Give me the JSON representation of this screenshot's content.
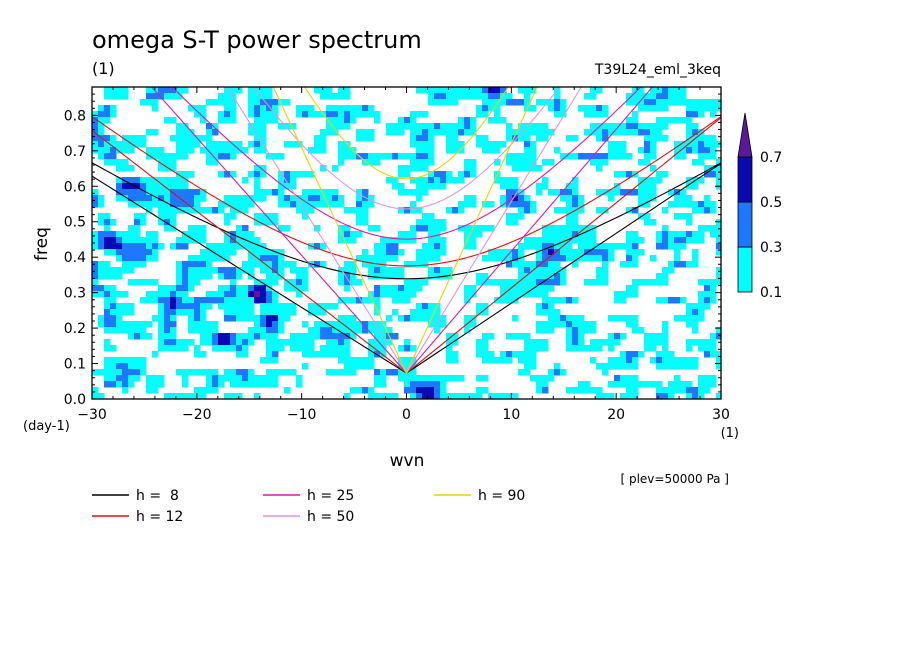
{
  "chart_data": {
    "type": "heatmap",
    "title": "omega S-T power spectrum",
    "subtitle": "(1)",
    "run_label": "T39L24_eml_3keq",
    "xlabel": "wvn",
    "ylabel": "freq",
    "x_units": "(1)",
    "y_units": "(day-1)",
    "annotation": "[ plev=50000 Pa ]",
    "xlim": [
      -30,
      30
    ],
    "ylim": [
      0,
      0.88
    ],
    "x_ticks": [
      -30,
      -20,
      -10,
      0,
      10,
      20,
      30
    ],
    "y_ticks": [
      0.0,
      0.1,
      0.2,
      0.3,
      0.4,
      0.5,
      0.6,
      0.7,
      0.8
    ],
    "y_tick_labels": [
      "0.0",
      "0.1",
      "0.2",
      "0.3",
      "0.4",
      "0.5",
      "0.6",
      "0.7",
      "0.8"
    ],
    "colorbar": {
      "levels": [
        0.1,
        0.3,
        0.5,
        0.7
      ],
      "labels": [
        "0.1",
        "0.3",
        "0.5",
        "0.7"
      ],
      "colors": [
        "#00ffff",
        "#1e78ff",
        "#0a0ab4",
        "#5a189a"
      ]
    },
    "field_samples": [
      {
        "wvn": -27,
        "freq": 0.05,
        "power": 0.15
      },
      {
        "wvn": -20,
        "freq": 0.4,
        "power": 0.2
      },
      {
        "wvn": -14,
        "freq": 0.3,
        "power": 0.55
      },
      {
        "wvn": -16,
        "freq": 0.36,
        "power": 0.35
      },
      {
        "wvn": -22,
        "freq": 0.27,
        "power": 0.35
      },
      {
        "wvn": -13,
        "freq": 0.22,
        "power": 0.35
      },
      {
        "wvn": -8,
        "freq": 0.2,
        "power": 0.35
      },
      {
        "wvn": -28,
        "freq": 0.44,
        "power": 0.35
      },
      {
        "wvn": -21,
        "freq": 0.56,
        "power": 0.35
      },
      {
        "wvn": -18,
        "freq": 0.16,
        "power": 0.35
      },
      {
        "wvn": -6,
        "freq": 0.16,
        "power": 0.35
      },
      {
        "wvn": 2,
        "freq": 0.01,
        "power": 0.55
      },
      {
        "wvn": 8,
        "freq": 0.87,
        "power": 0.55
      },
      {
        "wvn": 10,
        "freq": 0.55,
        "power": 0.35
      },
      {
        "wvn": 14,
        "freq": 0.41,
        "power": 0.35
      },
      {
        "wvn": -24,
        "freq": 0.86,
        "power": 0.35
      },
      {
        "wvn": -26,
        "freq": 0.6,
        "power": 0.35
      }
    ],
    "series": [
      {
        "name": "h =  8",
        "color": "#000000",
        "h": 8
      },
      {
        "name": "h = 12",
        "color": "#e01010",
        "h": 12
      },
      {
        "name": "h = 25",
        "color": "#d61ab0",
        "h": 25
      },
      {
        "name": "h = 50",
        "color": "#dc96dc",
        "h": 50
      },
      {
        "name": "h = 90",
        "color": "#f0d000",
        "h": 90
      }
    ]
  }
}
